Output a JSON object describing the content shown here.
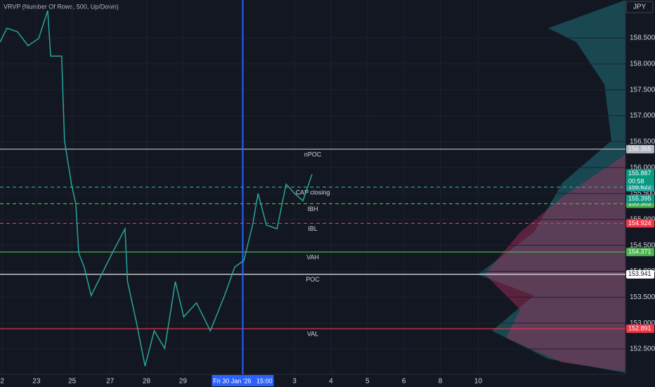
{
  "chart_data": {
    "type": "line",
    "title": "VRVP (Number Of Rows, 500, Up/Down)",
    "currency": "JPY",
    "color": "#26a69a",
    "x": [
      -0.06,
      0.13,
      0.42,
      0.71,
      1.0,
      1.25,
      1.33,
      1.63,
      1.71,
      1.9,
      2.02,
      2.1,
      2.25,
      2.44,
      2.73,
      3.02,
      3.37,
      3.44,
      3.69,
      3.92,
      4.17,
      4.46,
      4.75,
      4.98,
      5.33,
      5.71,
      6.1,
      6.38,
      6.63,
      6.87,
      7.02,
      7.25,
      7.54,
      7.79,
      8.02,
      8.25,
      8.5
    ],
    "values": [
      158.42,
      158.69,
      158.62,
      158.35,
      158.49,
      159.03,
      158.15,
      158.15,
      156.52,
      155.68,
      155.3,
      154.35,
      154.08,
      153.53,
      153.94,
      154.35,
      154.82,
      153.8,
      152.99,
      152.17,
      152.85,
      152.51,
      153.8,
      153.12,
      153.39,
      152.85,
      153.53,
      154.08,
      154.21,
      154.89,
      155.5,
      154.89,
      154.82,
      155.68,
      155.5,
      155.36,
      155.87
    ],
    "xlim": [
      -0.06,
      17.1
    ],
    "xticks": [
      {
        "value": 0,
        "label": "2"
      },
      {
        "value": 0.94,
        "label": "23"
      },
      {
        "value": 1.92,
        "label": "25"
      },
      {
        "value": 2.96,
        "label": "27"
      },
      {
        "value": 3.96,
        "label": "28"
      },
      {
        "value": 4.96,
        "label": "29"
      },
      {
        "value": 8.02,
        "label": "3"
      },
      {
        "value": 9.02,
        "label": "4"
      },
      {
        "value": 10.02,
        "label": "5"
      },
      {
        "value": 11.02,
        "label": "6"
      },
      {
        "value": 12.02,
        "label": "8"
      },
      {
        "value": 13.06,
        "label": "10"
      }
    ],
    "crosshair": {
      "x": 6.6,
      "label": "Fri 30 Jan '26   15:00"
    },
    "ylim": [
      152.011,
      159.233
    ],
    "yticks": [
      {
        "value": 152.5,
        "label": "152.500"
      },
      {
        "value": 153,
        "label": "153.000"
      },
      {
        "value": 153.5,
        "label": "153.500"
      },
      {
        "value": 154,
        "label": "154.000"
      },
      {
        "value": 154.5,
        "label": "154.500"
      },
      {
        "value": 155,
        "label": "155.000"
      },
      {
        "value": 155.5,
        "label": "155.500"
      },
      {
        "value": 156,
        "label": "156.000"
      },
      {
        "value": 156.5,
        "label": "156.500"
      },
      {
        "value": 157,
        "label": "157.000"
      },
      {
        "value": 157.5,
        "label": "157.500"
      },
      {
        "value": 158,
        "label": "158.000"
      },
      {
        "value": 158.5,
        "label": "158.500"
      }
    ],
    "levels": [
      {
        "label": "nPOC",
        "value": 156.355,
        "color": "#b2b5be",
        "dash": false
      },
      {
        "label": "CAP closing",
        "value": 155.622,
        "color": "#26a69a",
        "dash": true
      },
      {
        "label": "IBH",
        "value": 155.303,
        "color": "#4caf50",
        "dash": true
      },
      {
        "label": "IBL",
        "value": 154.924,
        "color": "#f23645",
        "dash": true
      },
      {
        "label": "VAH",
        "value": 154.371,
        "color": "#4caf50",
        "dash": false
      },
      {
        "label": "POC",
        "value": 153.941,
        "color": "#ffffff",
        "dash": false
      },
      {
        "label": "VAL",
        "value": 152.891,
        "color": "#f23645",
        "dash": false
      }
    ],
    "price_tags": [
      {
        "value": 155.887,
        "color": "#089981",
        "countdown": "00:58"
      },
      {
        "value": 155.395,
        "color": "#089981"
      }
    ]
  }
}
